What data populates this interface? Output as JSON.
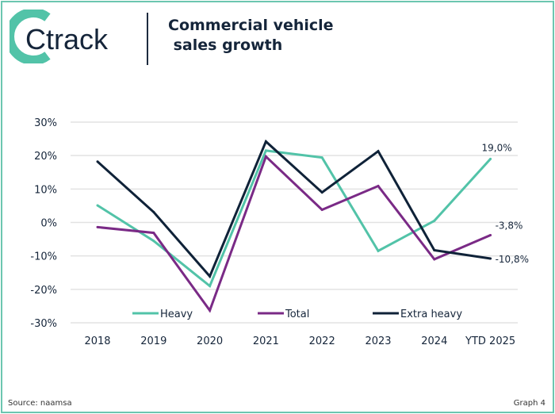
{
  "logo": {
    "text": "Ctrack"
  },
  "title": "Commercial vehicle\n sales growth",
  "footer": {
    "source": "Source: naamsa",
    "graph": "Graph 4"
  },
  "colors": {
    "heavy": "#52c3a8",
    "total": "#7a2a86",
    "extra_heavy": "#0f2238",
    "frame": "#6cc6b0"
  },
  "chart_data": {
    "type": "line",
    "categories": [
      "2018",
      "2019",
      "2020",
      "2021",
      "2022",
      "2023",
      "2024",
      "YTD 2025"
    ],
    "ylim": [
      -30,
      30
    ],
    "yticks": [
      "30%",
      "20%",
      "10%",
      "0%",
      "-10%",
      "-20%",
      "-30%"
    ],
    "grid": true,
    "legend": "bottom-inside",
    "series": [
      {
        "name": "Heavy",
        "color": "#52c3a8",
        "values": [
          5.1,
          -5.5,
          -19.0,
          21.5,
          19.4,
          -8.5,
          0.5,
          19.0
        ],
        "end_label": "19,0%"
      },
      {
        "name": "Total",
        "color": "#7a2a86",
        "values": [
          -1.4,
          -3.1,
          -26.3,
          19.7,
          3.8,
          10.9,
          -11.0,
          -3.8
        ],
        "end_label": "-3,8%"
      },
      {
        "name": "Extra heavy",
        "color": "#0f2238",
        "values": [
          18.2,
          3.1,
          -16.1,
          24.2,
          9.0,
          21.3,
          -8.3,
          -10.8
        ],
        "end_label": "-10,8%"
      }
    ]
  }
}
